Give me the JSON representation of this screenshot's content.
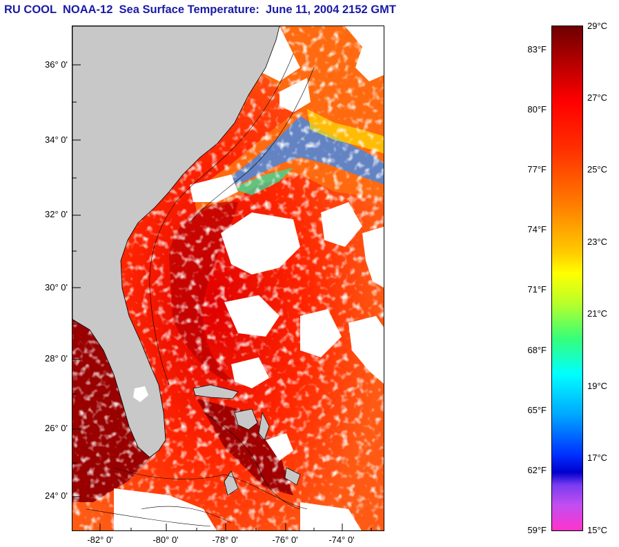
{
  "title": "RU COOL  NOAA-12  Sea Surface Temperature:  June 11, 2004 2152 GMT",
  "map": {
    "latitude_labels": [
      "36° 0'",
      "34° 0'",
      "32° 0'",
      "30° 0'",
      "28° 0'",
      "26° 0'",
      "24° 0'"
    ],
    "longitude_labels": [
      "-82° 0'",
      "-80° 0'",
      "-78° 0'",
      "-76° 0'",
      "-74° 0'"
    ],
    "land_color": "#c8c8c8",
    "cloud_color": "#ffffff"
  },
  "colorbar": {
    "fahrenheit_labels": [
      "83°F",
      "80°F",
      "77°F",
      "74°F",
      "71°F",
      "68°F",
      "65°F",
      "62°F",
      "59°F"
    ],
    "celsius_labels": [
      "29°C",
      "27°C",
      "25°C",
      "23°C",
      "21°C",
      "19°C",
      "17°C",
      "15°C"
    ]
  }
}
